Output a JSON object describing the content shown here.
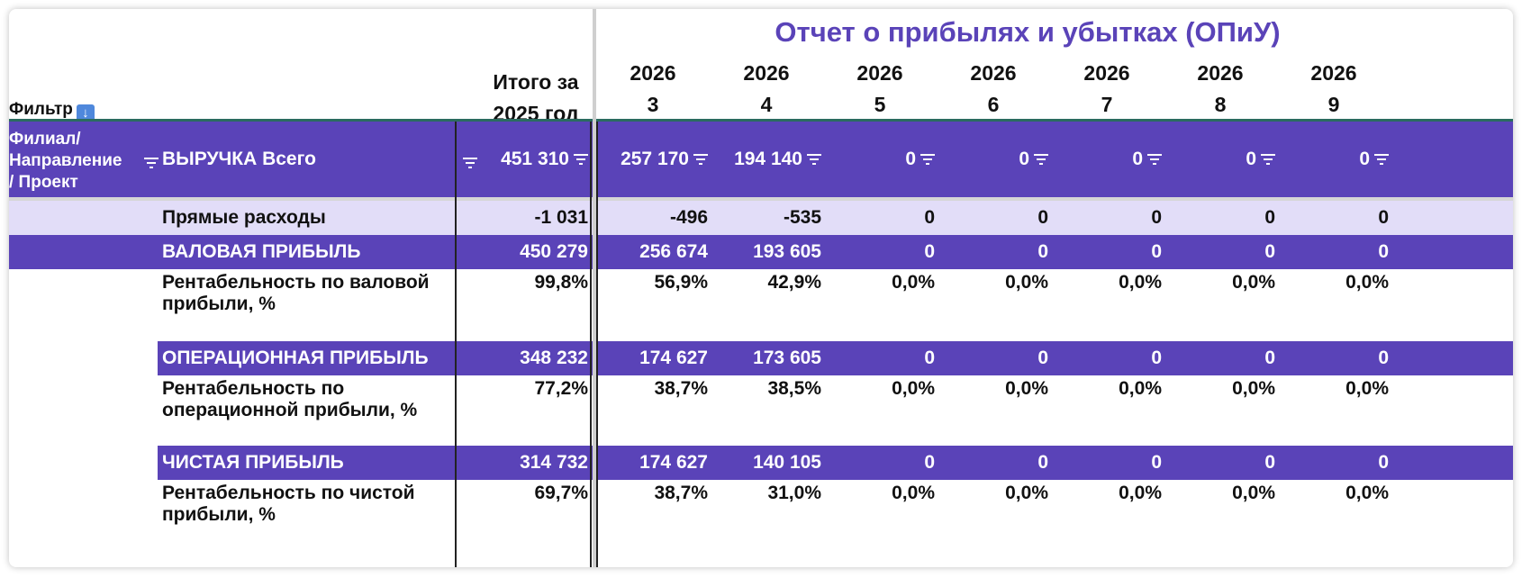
{
  "title": "Отчет о прибылях и убытках (ОПиУ)",
  "filter_label": "Фильтр",
  "filter_icon": "arrow-down-square-icon",
  "total_header": [
    "Итого за",
    "2025 год"
  ],
  "columns": [
    {
      "year": "2026",
      "month": "3"
    },
    {
      "year": "2026",
      "month": "4"
    },
    {
      "year": "2026",
      "month": "5"
    },
    {
      "year": "2026",
      "month": "6"
    },
    {
      "year": "2026",
      "month": "7"
    },
    {
      "year": "2026",
      "month": "8"
    },
    {
      "year": "2026",
      "month": "9"
    }
  ],
  "branch_label": [
    "Филиал/",
    "Направление",
    "/ Проект"
  ],
  "revenue": {
    "label": "ВЫРУЧКА Всего",
    "total": "451 310",
    "values": [
      "257 170",
      "194 140",
      "0",
      "0",
      "0",
      "0",
      "0"
    ]
  },
  "rows": [
    {
      "label": "Прямые расходы",
      "total": "-1 031",
      "values": [
        "-496",
        "-535",
        "0",
        "0",
        "0",
        "0",
        "0"
      ]
    },
    {
      "label": "ВАЛОВАЯ ПРИБЫЛЬ",
      "total": "450 279",
      "values": [
        "256 674",
        "193 605",
        "0",
        "0",
        "0",
        "0",
        "0"
      ]
    },
    {
      "label": [
        "Рентабельность по валовой",
        "прибыли, %"
      ],
      "total": "99,8%",
      "values": [
        "56,9%",
        "42,9%",
        "0,0%",
        "0,0%",
        "0,0%",
        "0,0%",
        "0,0%"
      ]
    },
    {
      "label": "ОПЕРАЦИОННАЯ ПРИБЫЛЬ",
      "total": "348 232",
      "values": [
        "174 627",
        "173 605",
        "0",
        "0",
        "0",
        "0",
        "0"
      ]
    },
    {
      "label": [
        "Рентабельность по",
        "операционной прибыли, %"
      ],
      "total": "77,2%",
      "values": [
        "38,7%",
        "38,5%",
        "0,0%",
        "0,0%",
        "0,0%",
        "0,0%",
        "0,0%"
      ]
    },
    {
      "label": "ЧИСТАЯ ПРИБЫЛЬ",
      "total": "314 732",
      "values": [
        "174 627",
        "140 105",
        "0",
        "0",
        "0",
        "0",
        "0"
      ]
    },
    {
      "label": [
        "Рентабельность по чистой",
        "прибыли, %"
      ],
      "total": "69,7%",
      "values": [
        "38,7%",
        "31,0%",
        "0,0%",
        "0,0%",
        "0,0%",
        "0,0%",
        "0,0%"
      ]
    }
  ],
  "colors": {
    "accent": "#5a43b8",
    "light": "#e2ddf8"
  }
}
